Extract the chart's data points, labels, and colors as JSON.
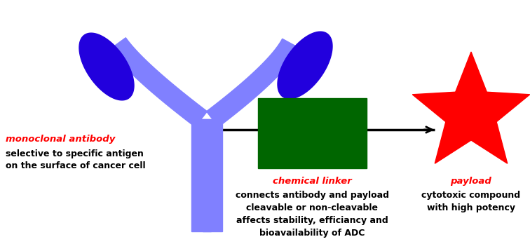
{
  "bg_color": "#ffffff",
  "antibody_color": "#8080ff",
  "arm_color": "#2200dd",
  "linker_color": "#006600",
  "payload_color": "#ff0000",
  "line_color": "#000000",
  "label_red": "#ff0000",
  "label_black": "#000000",
  "antibody_label": "monoclonal antibody",
  "antibody_desc1": "selective to specific antigen",
  "antibody_desc2": "on the surface of cancer cell",
  "linker_label": "chemical linker",
  "linker_desc1": "connects antibody and payload",
  "linker_desc2": "cleavable or non-cleavable",
  "linker_desc3": "affects stability, efficiancy and",
  "linker_desc4": "bioavailability of ADC",
  "payload_label": "payload",
  "payload_desc1": "cytotoxic compound",
  "payload_desc2": "with high potency",
  "figsize": [
    7.56,
    3.48
  ],
  "dpi": 100
}
